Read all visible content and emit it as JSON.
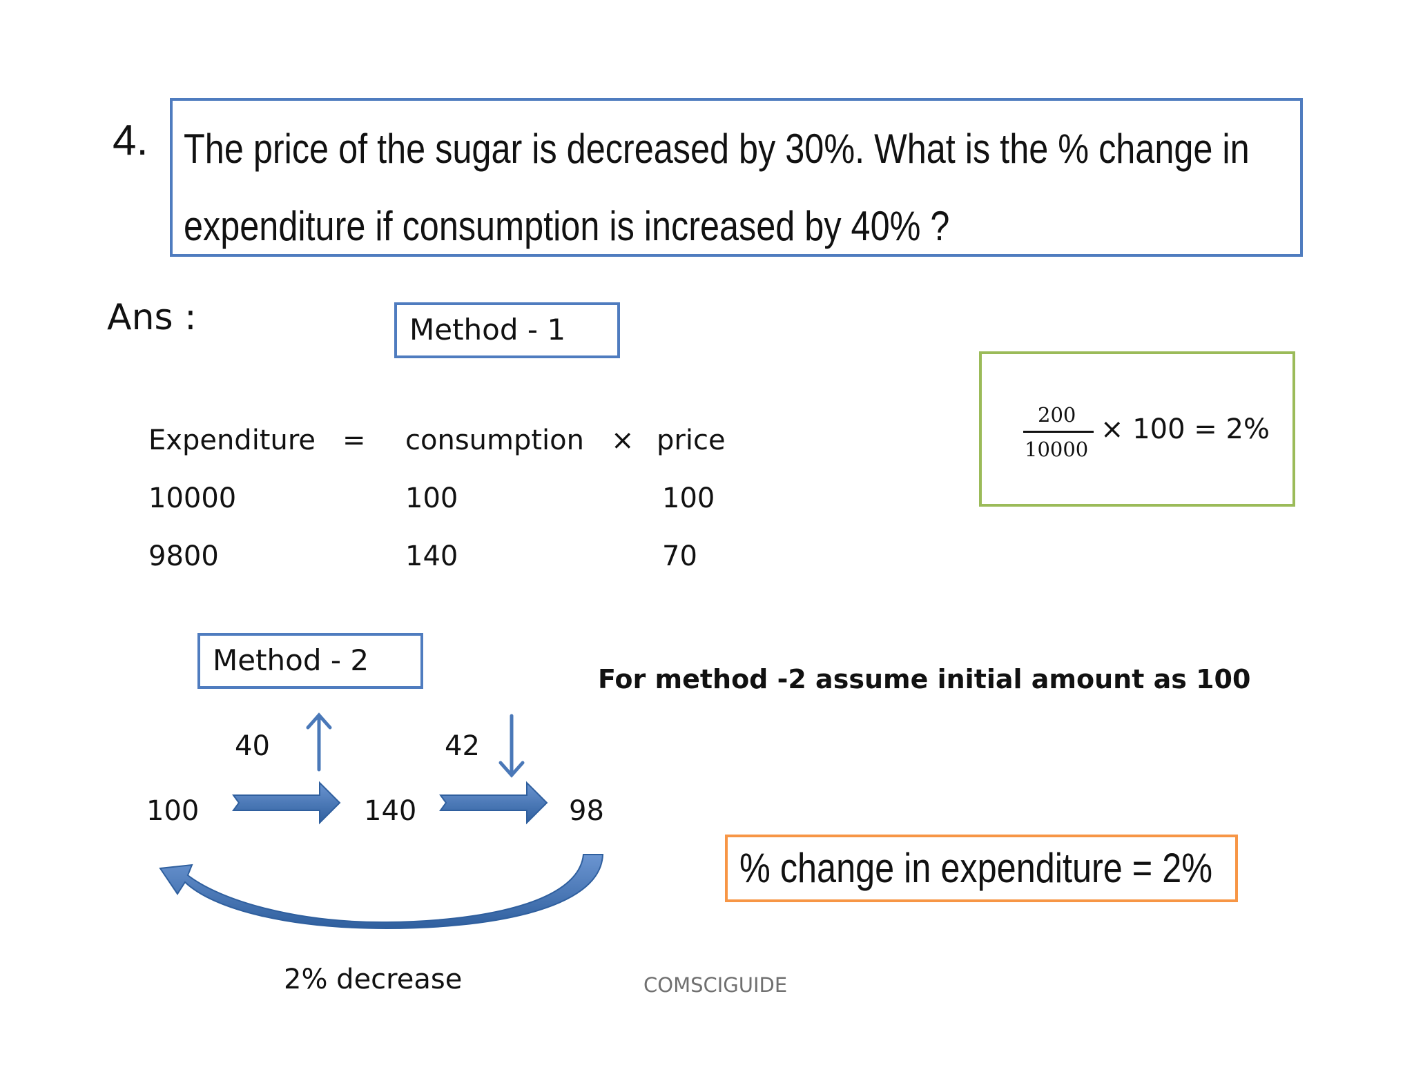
{
  "question": {
    "number": "4.",
    "line1": "The price of the sugar is decreased by 30%. What is the % change in",
    "line2": "expenditure if consumption is increased by 40% ?"
  },
  "answer_label": "Ans :",
  "method1": {
    "label": "Method - 1",
    "headers": [
      "Expenditure",
      "=",
      "consumption",
      "×",
      "price"
    ],
    "rows": [
      [
        "10000",
        "100",
        "100"
      ],
      [
        "9800",
        "140",
        "70"
      ]
    ]
  },
  "formula": {
    "numerator": "200",
    "denominator": "10000",
    "rest": "× 100 = 2%"
  },
  "method2": {
    "label": "Method - 2",
    "note": "For method -2 assume initial amount as 100",
    "start": "100",
    "step1_change": "40",
    "middle": "140",
    "step2_change": "42",
    "end": "98",
    "overall": "2%  decrease"
  },
  "result": "% change in expenditure = 2%",
  "credit": "COMSCIGUIDE",
  "colors": {
    "blue_border": "#4f7cbf",
    "green_border": "#9bbb59",
    "orange_border": "#f79646",
    "arrow_fill": "#4a78b8"
  }
}
